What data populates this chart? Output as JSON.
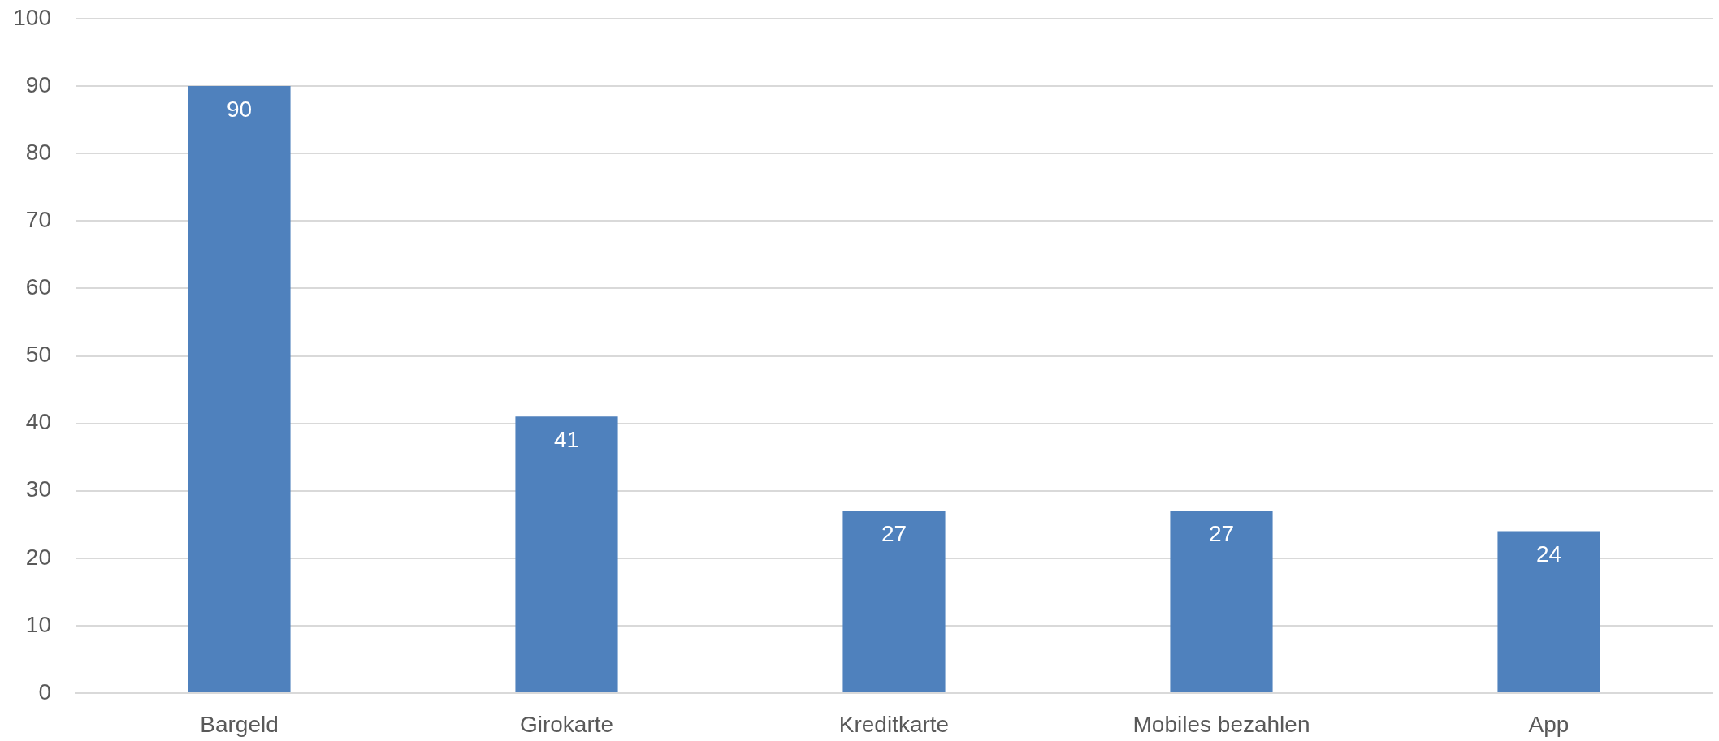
{
  "chart_data": {
    "type": "bar",
    "categories": [
      "Bargeld",
      "Girokarte",
      "Kreditkarte",
      "Mobiles bezahlen",
      "App"
    ],
    "values": [
      90,
      41,
      27,
      27,
      24
    ],
    "color": "#4f81bd",
    "ylim": [
      0,
      100
    ],
    "yticks": [
      0,
      10,
      20,
      30,
      40,
      50,
      60,
      70,
      80,
      90,
      100
    ],
    "grid": "y",
    "data_labels": true
  }
}
